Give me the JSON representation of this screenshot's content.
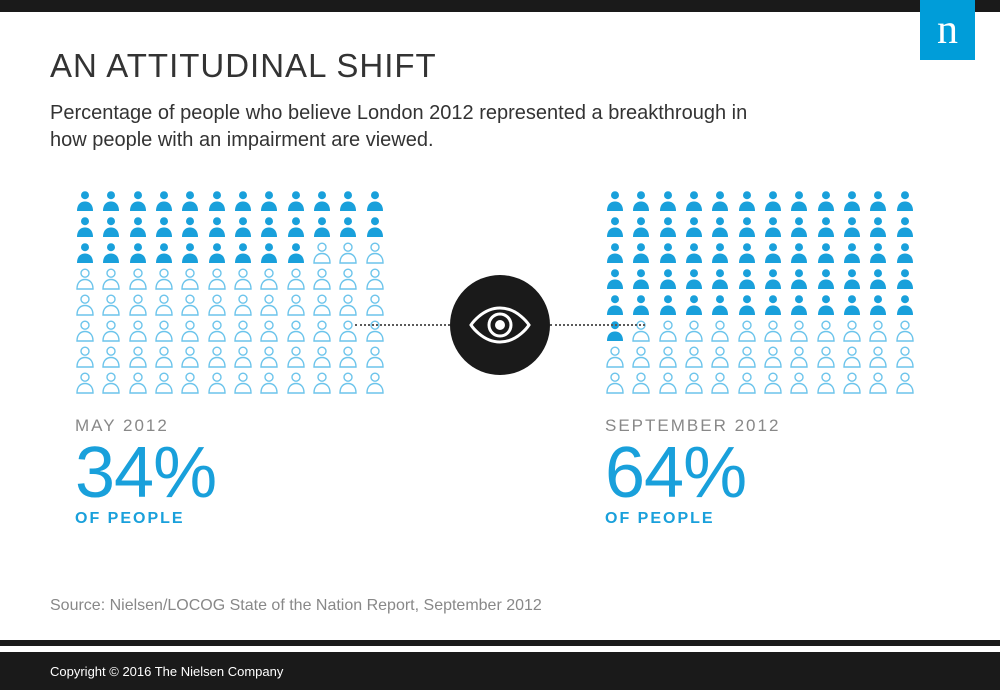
{
  "brand": {
    "logo_letter": "n",
    "logo_bg": "#009dd9"
  },
  "title": "AN ATTITUDINAL SHIFT",
  "subtitle": "Percentage of people who believe London 2012 represented a breakthrough in how people with an impairment are viewed.",
  "chart": {
    "type": "icon-array",
    "grid": {
      "cols": 12,
      "rows": 8,
      "total": 96
    },
    "icon_filled_color": "#19a0db",
    "icon_outline_color": "#6cc4eb",
    "accent_color": "#19a0db",
    "panels": [
      {
        "label": "MAY 2012",
        "percent_text": "34%",
        "percent_value": 34,
        "filled": 33
      },
      {
        "label": "SEPTEMBER 2012",
        "percent_text": "64%",
        "percent_value": 64,
        "filled": 61
      }
    ],
    "of_people": "OF PEOPLE",
    "center_icon": "eye-icon",
    "center_bg": "#1a1a1a"
  },
  "source": "Source: Nielsen/LOCOG State of the Nation Report, September 2012",
  "copyright": "Copyright © 2016 The Nielsen Company"
}
